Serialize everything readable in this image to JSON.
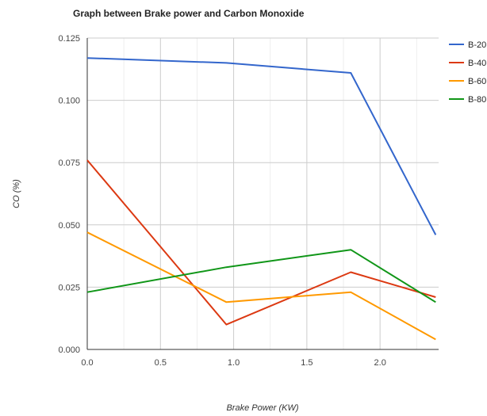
{
  "chart_data": {
    "type": "line",
    "title": "Graph between Brake power and Carbon Monoxide",
    "xlabel": "Brake Power (KW)",
    "ylabel": "CO (%)",
    "xlim": [
      0,
      2.4
    ],
    "ylim": [
      0,
      0.125
    ],
    "x_ticks": [
      "0.0",
      "0.5",
      "1.0",
      "1.5",
      "2.0"
    ],
    "x_tick_values": [
      0,
      0.5,
      1.0,
      1.5,
      2.0
    ],
    "y_ticks": [
      "0.000",
      "0.025",
      "0.050",
      "0.075",
      "0.100",
      "0.125"
    ],
    "y_tick_values": [
      0,
      0.025,
      0.05,
      0.075,
      0.1,
      0.125
    ],
    "grid": true,
    "legend_position": "right",
    "series": [
      {
        "name": "B-20",
        "color": "#3366cc",
        "x": [
          0,
          0.95,
          1.8,
          2.38
        ],
        "y": [
          0.117,
          0.115,
          0.111,
          0.046
        ]
      },
      {
        "name": "B-40",
        "color": "#dc3912",
        "x": [
          0,
          0.95,
          1.8,
          2.38
        ],
        "y": [
          0.076,
          0.01,
          0.031,
          0.021
        ]
      },
      {
        "name": "B-60",
        "color": "#ff9900",
        "x": [
          0,
          0.95,
          1.8,
          2.38
        ],
        "y": [
          0.047,
          0.019,
          0.023,
          0.004
        ]
      },
      {
        "name": "B-80",
        "color": "#109618",
        "x": [
          0,
          0.95,
          1.8,
          2.38
        ],
        "y": [
          0.023,
          0.033,
          0.04,
          0.019
        ]
      }
    ]
  }
}
